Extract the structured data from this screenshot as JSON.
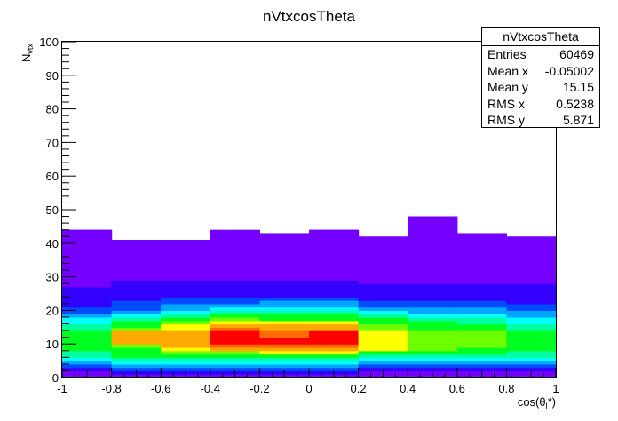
{
  "title": "nVtxcosTheta",
  "axes": {
    "xlabel": "cos(θ",
    "xlabel_sub": "l",
    "xlabel_tail": "*)",
    "ylabel_main": "N",
    "ylabel_sub": "vtx"
  },
  "stats": {
    "title": "nVtxcosTheta",
    "rows": [
      {
        "label": "Entries",
        "value": "60469"
      },
      {
        "label": "Mean x",
        "value": "-0.05002"
      },
      {
        "label": "Mean y",
        "value": "15.15"
      },
      {
        "label": "RMS x",
        "value": "0.5238"
      },
      {
        "label": "RMS y",
        "value": "5.871"
      }
    ]
  },
  "chart_data": {
    "type": "heatmap",
    "title": "nVtxcosTheta",
    "xlim": [
      -1,
      1
    ],
    "ylim": [
      0,
      100
    ],
    "x_ticks": [
      "-1",
      "-0.8",
      "-0.6",
      "-0.4",
      "-0.2",
      "0",
      "0.2",
      "0.4",
      "0.6",
      "0.8",
      "1"
    ],
    "y_ticks": [
      "0",
      "10",
      "20",
      "30",
      "40",
      "50",
      "60",
      "70",
      "80",
      "90",
      "100"
    ],
    "x_bin_edges": [
      -1,
      -0.8,
      -0.6,
      -0.4,
      -0.2,
      0,
      0.2,
      0.4,
      0.6,
      0.8,
      1
    ],
    "y_bin_width": 1,
    "palette": [
      "#7400ff",
      "#3300ff",
      "#004bff",
      "#00a6ff",
      "#00ffff",
      "#00ffa2",
      "#00ff21",
      "#6dff00",
      "#ffff00",
      "#ffa800",
      "#ff6a00",
      "#ff0000"
    ],
    "levels": [
      [
        0,
        0,
        1,
        2,
        3,
        4,
        5,
        5,
        6,
        6,
        6,
        6,
        6,
        6,
        5,
        5,
        4,
        4,
        3,
        2,
        2,
        1,
        1,
        1,
        1,
        1,
        1,
        0,
        0,
        0,
        0,
        0,
        0,
        0,
        0,
        0,
        0,
        0,
        0,
        0,
        0,
        0,
        0,
        0
      ],
      [
        0,
        1,
        2,
        3,
        4,
        5,
        6,
        6,
        6,
        7,
        9,
        9,
        9,
        9,
        7,
        6,
        6,
        5,
        4,
        3,
        2,
        2,
        2,
        1,
        1,
        1,
        1,
        1,
        1,
        0,
        0,
        0,
        0,
        0,
        0,
        0,
        0,
        0,
        0,
        0,
        0
      ],
      [
        0,
        1,
        2,
        3,
        4,
        5,
        6,
        7,
        8,
        9,
        9,
        9,
        9,
        9,
        8,
        8,
        7,
        6,
        5,
        4,
        3,
        3,
        2,
        2,
        1,
        1,
        1,
        1,
        1,
        0,
        0,
        0,
        0,
        0,
        0,
        0,
        0,
        0,
        0,
        0,
        0
      ],
      [
        0,
        1,
        2,
        3,
        4,
        5,
        6,
        7,
        9,
        10,
        11,
        11,
        11,
        11,
        10,
        9,
        8,
        7,
        6,
        5,
        4,
        3,
        2,
        2,
        1,
        1,
        1,
        1,
        1,
        0,
        0,
        0,
        0,
        0,
        0,
        0,
        0,
        0,
        0,
        0,
        0,
        0,
        0,
        0
      ],
      [
        0,
        1,
        2,
        3,
        4,
        5,
        6,
        8,
        9,
        10,
        11,
        11,
        10,
        10,
        9,
        9,
        8,
        6,
        6,
        5,
        4,
        3,
        3,
        2,
        1,
        1,
        1,
        1,
        1,
        0,
        0,
        0,
        0,
        0,
        0,
        0,
        0,
        0,
        0,
        0,
        0,
        0,
        0
      ],
      [
        0,
        1,
        2,
        3,
        4,
        5,
        6,
        8,
        9,
        10,
        11,
        11,
        11,
        11,
        9,
        9,
        8,
        6,
        6,
        5,
        4,
        3,
        3,
        2,
        1,
        1,
        1,
        1,
        1,
        0,
        0,
        0,
        0,
        0,
        0,
        0,
        0,
        0,
        0,
        0,
        0,
        0,
        0,
        0
      ],
      [
        0,
        0,
        1,
        2,
        3,
        4,
        5,
        6,
        8,
        8,
        8,
        8,
        8,
        8,
        7,
        7,
        6,
        6,
        5,
        4,
        3,
        2,
        2,
        1,
        1,
        1,
        1,
        1,
        0,
        0,
        0,
        0,
        0,
        0,
        0,
        0,
        0,
        0,
        0,
        0,
        0
      ],
      [
        0,
        0,
        1,
        2,
        3,
        4,
        5,
        6,
        7,
        7,
        7,
        7,
        7,
        7,
        6,
        6,
        6,
        5,
        4,
        3,
        3,
        2,
        2,
        1,
        1,
        1,
        1,
        1,
        0,
        0,
        0,
        0,
        0,
        0,
        0,
        0,
        0,
        0,
        0,
        0,
        0,
        0,
        0,
        0,
        0,
        0,
        0,
        0
      ],
      [
        0,
        0,
        1,
        2,
        3,
        4,
        5,
        6,
        6,
        7,
        7,
        7,
        7,
        7,
        6,
        6,
        5,
        5,
        4,
        3,
        3,
        2,
        2,
        1,
        1,
        1,
        1,
        1,
        0,
        0,
        0,
        0,
        0,
        0,
        0,
        0,
        0,
        0,
        0,
        0,
        0,
        0,
        0
      ],
      [
        0,
        0,
        1,
        2,
        3,
        4,
        5,
        5,
        6,
        6,
        6,
        6,
        6,
        6,
        5,
        5,
        4,
        4,
        3,
        3,
        2,
        2,
        1,
        1,
        1,
        1,
        1,
        1,
        0,
        0,
        0,
        0,
        0,
        0,
        0,
        0,
        0,
        0,
        0,
        0,
        0,
        0
      ]
    ],
    "isolated_bins": [
      {
        "xbin": 0,
        "y": 43
      },
      {
        "xbin": 4,
        "y": 42
      },
      {
        "xbin": 5,
        "y": 43
      },
      {
        "xbin": 5,
        "y": 41
      },
      {
        "xbin": 6,
        "y": 41
      },
      {
        "xbin": 7,
        "y": 47
      },
      {
        "xbin": 7,
        "y": 42
      },
      {
        "xbin": 8,
        "y": 41
      }
    ]
  }
}
